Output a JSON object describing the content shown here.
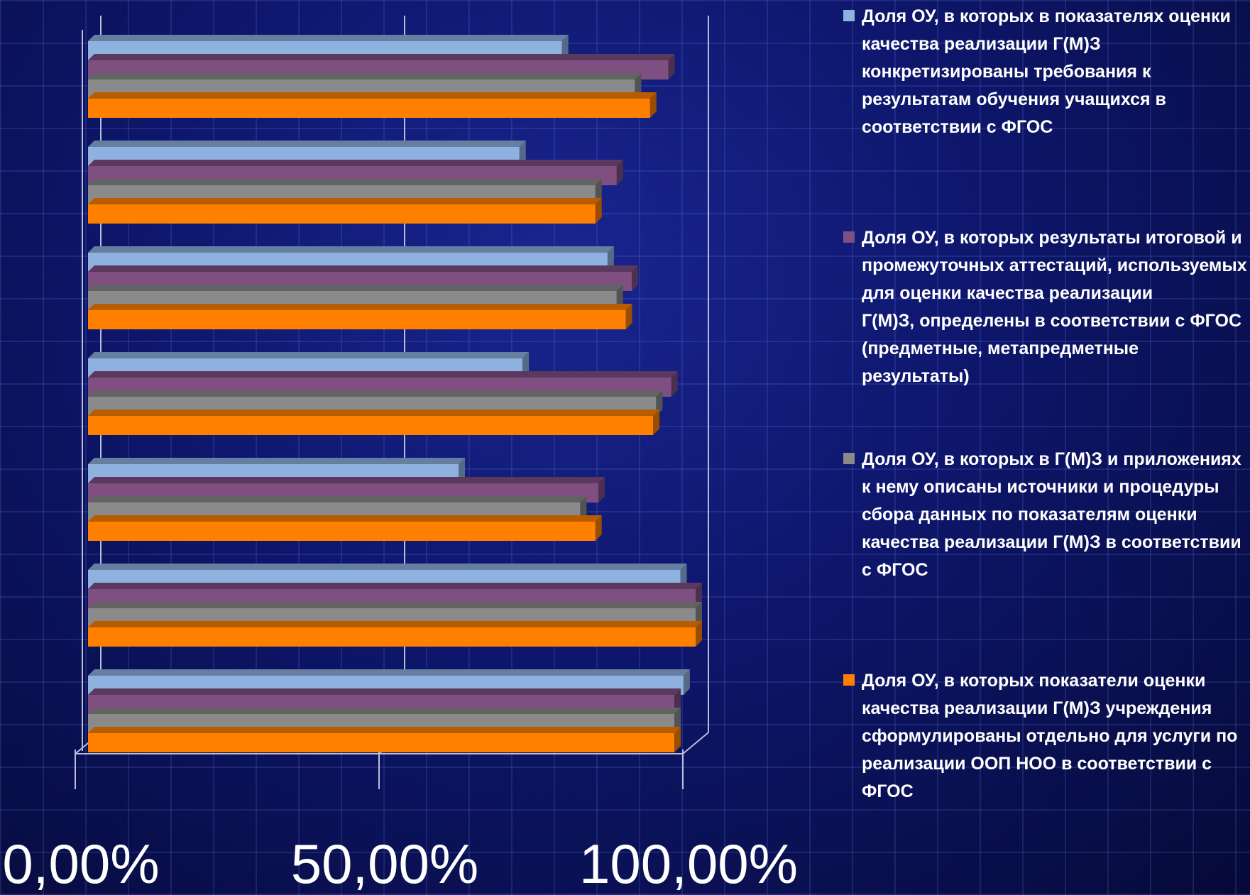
{
  "chart_data": {
    "type": "bar",
    "orientation": "horizontal",
    "categories": [
      "",
      "",
      "",
      "",
      "",
      "",
      ""
    ],
    "series": [
      {
        "name": "Доля ОУ, в которых в показателях оценки качества реализации Г(М)З конкретизированы требования к результатам обучения учащихся в соответствии с ФГОС",
        "color": "#8eb1df",
        "values": [
          0.78,
          0.71,
          0.855,
          0.715,
          0.61,
          0.975,
          0.98
        ]
      },
      {
        "name": "Доля ОУ, в которых результаты итоговой и промежуточных аттестаций, используемых для оценки качества реализации\nГ(М)З, определены в соответствии с ФГОС (предметные, метапредметные результаты)",
        "color": "#7f4f82",
        "values": [
          0.955,
          0.87,
          0.895,
          0.96,
          0.84,
          1.0,
          0.965
        ]
      },
      {
        "name": "Доля ОУ, в которых в Г(М)З и приложениях к нему описаны источники и процедуры сбора данных по показателям оценки качества реализации Г(М)З в соответствии с ФГОС",
        "color": "#8a8a8a",
        "values": [
          0.9,
          0.835,
          0.87,
          0.935,
          0.81,
          1.0,
          0.965
        ]
      },
      {
        "name": "Доля ОУ, в которых показатели оценки качества реализации Г(М)З учреждения сформулированы отдельно для услуги по реализации ООП НОО в соответствии с ФГОС",
        "color": "#ff8000",
        "values": [
          0.925,
          0.835,
          0.885,
          0.93,
          0.835,
          1.0,
          0.965
        ]
      }
    ],
    "xlim": [
      0,
      1
    ],
    "xticks": [
      "0,00%",
      "50,00%",
      "100,00%"
    ],
    "grid": true,
    "legend": "right",
    "background": "#0d166a"
  }
}
